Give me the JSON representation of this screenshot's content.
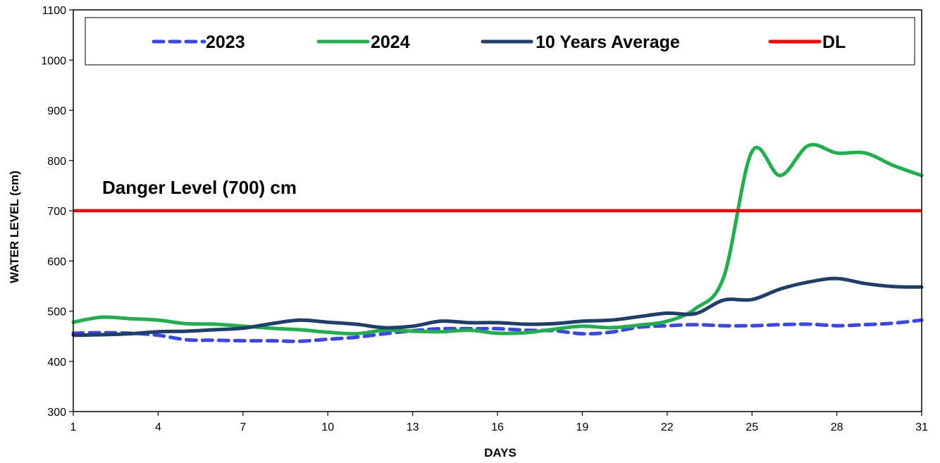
{
  "chart_data": {
    "type": "line",
    "xlabel": "DAYS",
    "ylabel": "WATER LEVEL (cm)",
    "ylim": [
      300,
      1100
    ],
    "xlim": [
      1,
      31
    ],
    "y_ticks": [
      300,
      400,
      500,
      600,
      700,
      800,
      900,
      1000,
      1100
    ],
    "x_ticks": [
      1,
      4,
      7,
      10,
      13,
      16,
      19,
      22,
      25,
      28,
      31
    ],
    "grid": false,
    "legend_position": "top",
    "annotation": "Danger Level (700) cm",
    "series": [
      {
        "name": "2023",
        "color": "#3b46e8",
        "style": "dashed",
        "x": [
          1,
          2,
          3,
          4,
          5,
          6,
          7,
          8,
          9,
          10,
          11,
          12,
          13,
          14,
          15,
          16,
          17,
          18,
          19,
          20,
          21,
          22,
          23,
          24,
          25,
          26,
          27,
          28,
          29,
          30,
          31
        ],
        "values": [
          456,
          457,
          456,
          452,
          443,
          442,
          441,
          441,
          440,
          444,
          448,
          455,
          461,
          465,
          465,
          465,
          462,
          461,
          455,
          458,
          468,
          471,
          473,
          471,
          471,
          473,
          474,
          471,
          473,
          476,
          482
        ]
      },
      {
        "name": "2024",
        "color": "#1fb04b",
        "style": "solid",
        "x": [
          1,
          2,
          3,
          4,
          5,
          6,
          7,
          8,
          9,
          10,
          11,
          12,
          13,
          14,
          15,
          16,
          17,
          18,
          19,
          20,
          21,
          22,
          23,
          24,
          25,
          26,
          27,
          28,
          29,
          30,
          31
        ],
        "values": [
          478,
          488,
          485,
          482,
          475,
          474,
          470,
          466,
          463,
          458,
          455,
          462,
          460,
          459,
          462,
          456,
          457,
          464,
          470,
          467,
          472,
          480,
          505,
          568,
          818,
          770,
          830,
          815,
          815,
          790,
          770
        ]
      },
      {
        "name": "10 Years Average",
        "color": "#1f3e6b",
        "style": "solid",
        "x": [
          1,
          2,
          3,
          4,
          5,
          6,
          7,
          8,
          9,
          10,
          11,
          12,
          13,
          14,
          15,
          16,
          17,
          18,
          19,
          20,
          21,
          22,
          23,
          24,
          25,
          26,
          27,
          28,
          29,
          30,
          31
        ],
        "values": [
          452,
          453,
          455,
          459,
          460,
          463,
          466,
          475,
          482,
          478,
          474,
          467,
          470,
          480,
          477,
          477,
          474,
          475,
          480,
          482,
          489,
          496,
          495,
          522,
          523,
          544,
          558,
          565,
          555,
          549,
          548
        ]
      },
      {
        "name": "DL",
        "color": "#ff0000",
        "style": "solid",
        "x": [
          1,
          31
        ],
        "values": [
          700,
          700
        ]
      }
    ]
  }
}
